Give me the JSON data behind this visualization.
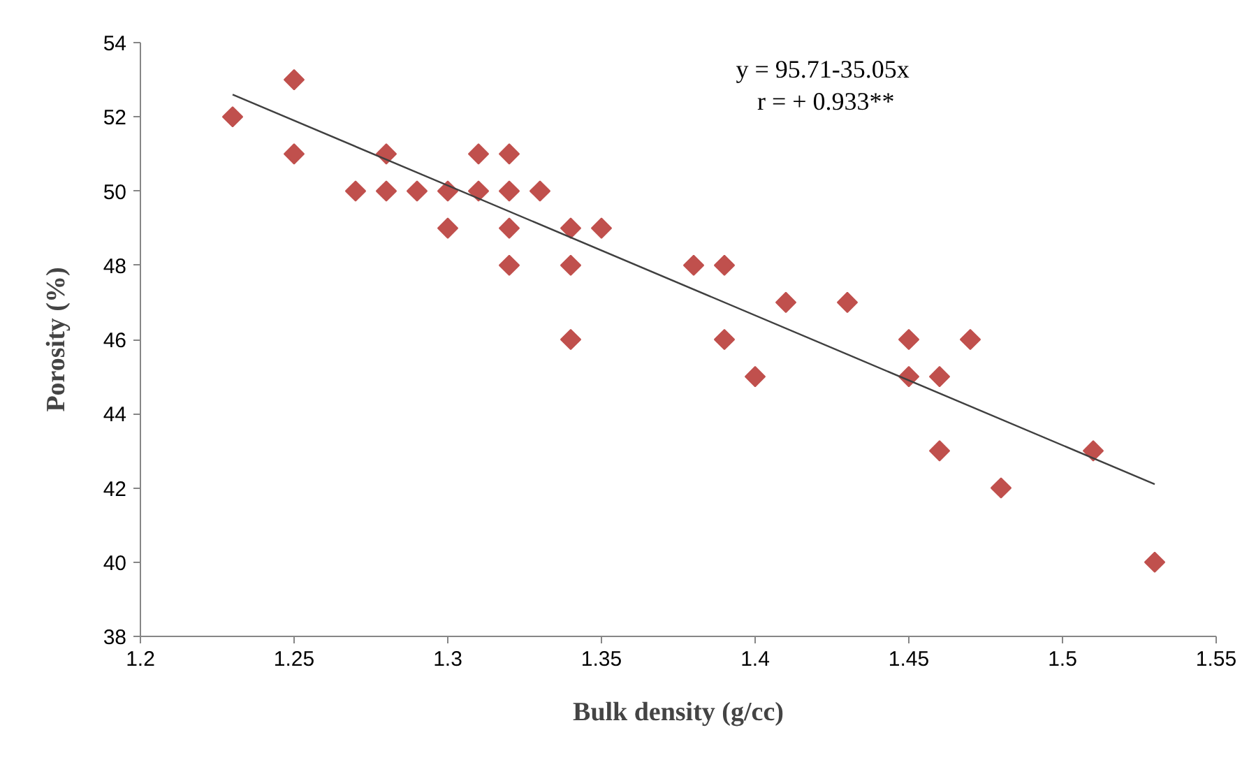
{
  "chart_data": {
    "type": "scatter",
    "xlabel": "Bulk density (g/cc)",
    "ylabel": "Porosity (%)",
    "marker": "diamond",
    "grid": false,
    "xlim": [
      1.2,
      1.55
    ],
    "xticks": [
      {
        "value": 1.2,
        "label": "1.2"
      },
      1.25,
      {
        "value": 1.3,
        "label": "1.3"
      },
      1.35,
      {
        "value": 1.4,
        "label": "1.4"
      },
      1.45,
      {
        "value": 1.5,
        "label": "1.5"
      },
      1.55
    ],
    "ylim": [
      38,
      54
    ],
    "yticks": [
      38,
      40,
      42,
      44,
      46,
      48,
      50,
      52,
      54
    ],
    "annotations": [
      "y =  95.71-35.05x",
      "r = + 0.933**"
    ],
    "series": [
      {
        "color": "#c0504d",
        "x": [
          1.23,
          1.25,
          1.25,
          1.27,
          1.28,
          1.28,
          1.29,
          1.3,
          1.3,
          1.31,
          1.31,
          1.32,
          1.32,
          1.32,
          1.32,
          1.33,
          1.34,
          1.34,
          1.34,
          1.35,
          1.38,
          1.39,
          1.39,
          1.4,
          1.41,
          1.43,
          1.45,
          1.45,
          1.46,
          1.46,
          1.47,
          1.48,
          1.51,
          1.53
        ],
        "values": [
          52,
          53,
          51,
          50,
          51,
          50,
          50,
          50,
          49,
          51,
          50,
          51,
          50,
          49,
          48,
          50,
          49,
          48,
          46,
          49,
          48,
          48,
          46,
          45,
          47,
          47,
          46,
          45,
          45,
          43,
          46,
          42,
          43,
          40
        ]
      },
      {
        "type": "line",
        "color": "#404040",
        "marker": "none",
        "x": [
          1.23,
          1.53
        ],
        "values": [
          52.6,
          42.1
        ]
      }
    ]
  }
}
